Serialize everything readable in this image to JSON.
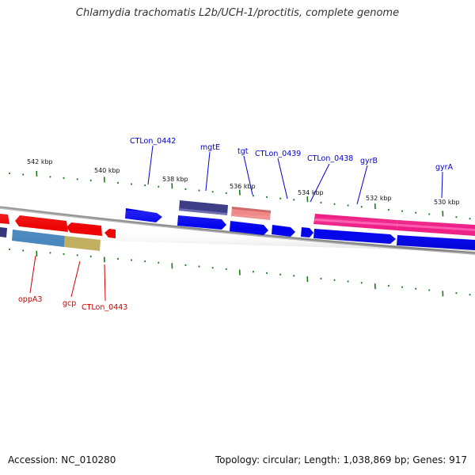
{
  "title": "Chlamydia trachomatis L2b/UCH-1/proctitis, complete genome",
  "footer": {
    "accession": "Accession: NC_010280",
    "info": "Topology: circular; Length: 1,038,869 bp; Genes: 917"
  },
  "colors": {
    "backbone": "#8a8a8a",
    "tick": "#1a7a1a",
    "forward_label": "#0000cc",
    "reverse_label": "#cc0000"
  },
  "scale_labels": [
    "542 kbp",
    "540 kbp",
    "538 kbp",
    "536 kbp",
    "534 kbp",
    "532 kbp",
    "530 kbp"
  ],
  "gene_labels": {
    "forward": [
      "CTLon_0442",
      "mgtE",
      "tgt",
      "CTLon_0439",
      "CTLon_0438",
      "gyrB",
      "gyrA"
    ],
    "reverse": [
      "oppA3",
      "gcp",
      "CTLon_0443"
    ]
  }
}
